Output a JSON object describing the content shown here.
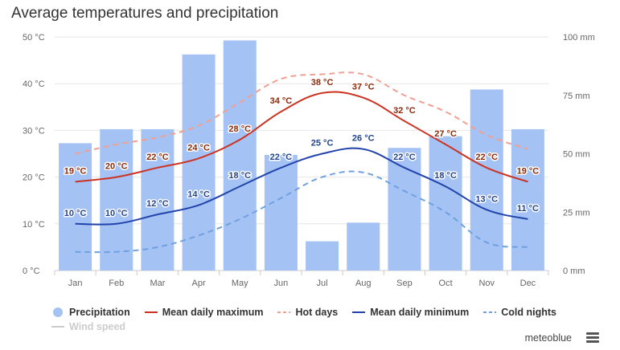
{
  "title": "Average temperatures and precipitation",
  "brand": "meteoblue",
  "colors": {
    "precipitation": "#a4c2f4",
    "mean_max": "#cc3322",
    "hot_days": "#f0a090",
    "mean_min": "#2244aa",
    "cold_nights": "#6fa0e0",
    "wind_speed": "#cccccc",
    "max_label": "#8b2a0a",
    "min_label": "#22448a"
  },
  "legend": [
    {
      "name": "Precipitation",
      "key": "precipitation",
      "symbol": "circle",
      "enabled": true
    },
    {
      "name": "Mean daily maximum",
      "key": "mean_max",
      "symbol": "line",
      "enabled": true
    },
    {
      "name": "Hot days",
      "key": "hot_days",
      "symbol": "dash",
      "enabled": true
    },
    {
      "name": "Mean daily minimum",
      "key": "mean_min",
      "symbol": "line",
      "enabled": true
    },
    {
      "name": "Cold nights",
      "key": "cold_nights",
      "symbol": "dash",
      "enabled": true
    },
    {
      "name": "Wind speed",
      "key": "wind_speed",
      "symbol": "line",
      "enabled": false
    }
  ],
  "chart_data": {
    "type": "bar",
    "title": "Average temperatures and precipitation",
    "categories": [
      "Jan",
      "Feb",
      "Mar",
      "Apr",
      "May",
      "Jun",
      "Jul",
      "Aug",
      "Sep",
      "Oct",
      "Nov",
      "Dec"
    ],
    "left_axis": {
      "ylim": [
        0,
        50
      ],
      "ticks": [
        "0 °C",
        "10 °C",
        "20 °C",
        "30 °C",
        "40 °C",
        "50 °C"
      ],
      "tick_values": [
        0,
        10,
        20,
        30,
        40,
        50
      ]
    },
    "right_axis": {
      "ylim": [
        0,
        100
      ],
      "ticks": [
        "0 mm",
        "25 mm",
        "50 mm",
        "75 mm",
        "100 mm"
      ],
      "tick_values": [
        0,
        25,
        50,
        75,
        100
      ]
    },
    "grid": true,
    "legend_position": "bottom",
    "series": [
      {
        "name": "Precipitation",
        "type": "bar",
        "axis": "right",
        "unit": "mm",
        "values": [
          54.5,
          60.5,
          60.5,
          92.5,
          98.5,
          49.5,
          12.5,
          20.5,
          52.5,
          57.5,
          77.5,
          60.5
        ]
      },
      {
        "name": "Mean daily maximum",
        "type": "line",
        "axis": "left",
        "unit": "°C",
        "values": [
          19,
          20,
          22,
          24,
          28,
          34,
          38,
          37,
          32,
          27,
          22,
          19
        ],
        "labels": [
          "19 °C",
          "20 °C",
          "22 °C",
          "24 °C",
          "28 °C",
          "34 °C",
          "38 °C",
          "37 °C",
          "32 °C",
          "27 °C",
          "22 °C",
          "19 °C"
        ]
      },
      {
        "name": "Hot days",
        "type": "line",
        "style": "dashed",
        "axis": "left",
        "unit": "°C",
        "values": [
          25,
          27,
          28.5,
          31,
          36,
          41,
          42,
          42,
          37.5,
          34,
          29,
          26
        ]
      },
      {
        "name": "Mean daily minimum",
        "type": "line",
        "axis": "left",
        "unit": "°C",
        "values": [
          10,
          10,
          12,
          14,
          18,
          22,
          25,
          26,
          22,
          18,
          13,
          11
        ],
        "labels": [
          "10 °C",
          "10 °C",
          "12 °C",
          "14 °C",
          "18 °C",
          "22 °C",
          "25 °C",
          "26 °C",
          "22 °C",
          "18 °C",
          "13 °C",
          "11 °C"
        ]
      },
      {
        "name": "Cold nights",
        "type": "line",
        "style": "dashed",
        "axis": "left",
        "unit": "°C",
        "values": [
          4,
          4,
          5,
          7.5,
          11,
          15.5,
          20,
          21,
          17,
          12.5,
          6,
          5
        ]
      }
    ]
  }
}
